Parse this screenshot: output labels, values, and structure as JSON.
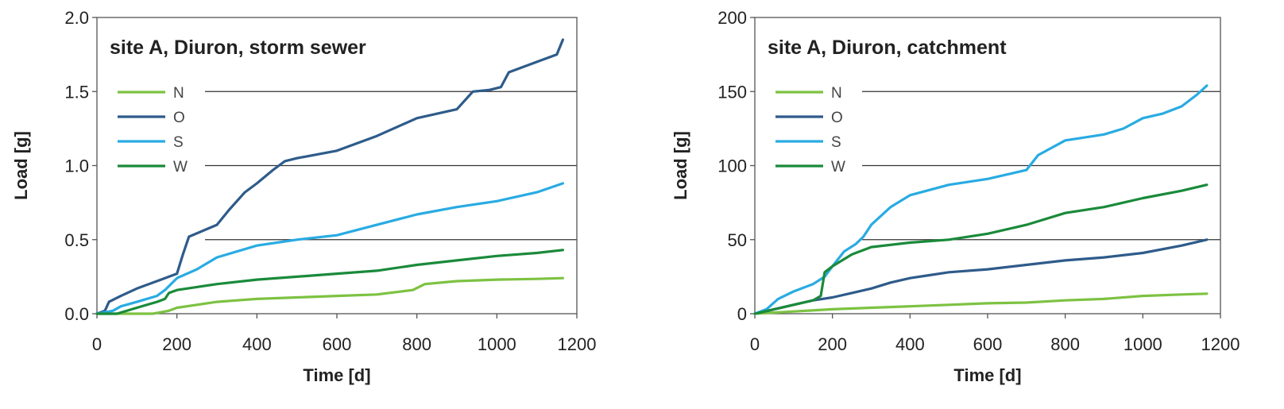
{
  "chart_data": [
    {
      "type": "line",
      "title": "site A, Diuron, storm sewer",
      "xlabel": "Time [d]",
      "ylabel": "Load [g]",
      "xlim": [
        0,
        1200
      ],
      "ylim": [
        0,
        2.0
      ],
      "xticks": [
        "0",
        "200",
        "400",
        "600",
        "800",
        "1000",
        "1200"
      ],
      "yticks": [
        "0.0",
        "0.5",
        "1.0",
        "1.5",
        "2.0"
      ],
      "grid": "horizontal",
      "legend": "top-left",
      "series": [
        {
          "name": "N",
          "color": "#7dc242",
          "x": [
            0,
            140,
            180,
            200,
            250,
            300,
            350,
            400,
            500,
            600,
            700,
            790,
            820,
            900,
            1000,
            1100,
            1165
          ],
          "y": [
            0,
            0.0,
            0.02,
            0.04,
            0.06,
            0.08,
            0.09,
            0.1,
            0.11,
            0.12,
            0.13,
            0.16,
            0.2,
            0.22,
            0.23,
            0.235,
            0.24
          ]
        },
        {
          "name": "O",
          "color": "#2e5b8a",
          "x": [
            0,
            20,
            30,
            60,
            100,
            150,
            200,
            215,
            230,
            300,
            330,
            370,
            400,
            440,
            470,
            500,
            600,
            700,
            800,
            900,
            940,
            980,
            1010,
            1030,
            1100,
            1150,
            1165
          ],
          "y": [
            0,
            0.02,
            0.08,
            0.12,
            0.17,
            0.22,
            0.27,
            0.4,
            0.52,
            0.6,
            0.7,
            0.82,
            0.88,
            0.97,
            1.03,
            1.05,
            1.1,
            1.2,
            1.32,
            1.38,
            1.5,
            1.51,
            1.53,
            1.63,
            1.7,
            1.75,
            1.85
          ]
        },
        {
          "name": "S",
          "color": "#29abe2",
          "x": [
            0,
            40,
            60,
            100,
            150,
            170,
            200,
            250,
            300,
            400,
            500,
            600,
            700,
            800,
            900,
            1000,
            1100,
            1165
          ],
          "y": [
            0,
            0.02,
            0.05,
            0.08,
            0.12,
            0.16,
            0.24,
            0.3,
            0.38,
            0.46,
            0.5,
            0.53,
            0.6,
            0.67,
            0.72,
            0.76,
            0.82,
            0.88
          ]
        },
        {
          "name": "W",
          "color": "#1a8a3a",
          "x": [
            0,
            50,
            100,
            150,
            170,
            180,
            200,
            250,
            300,
            400,
            500,
            600,
            700,
            800,
            900,
            1000,
            1100,
            1165
          ],
          "y": [
            0,
            0.0,
            0.04,
            0.08,
            0.1,
            0.14,
            0.16,
            0.18,
            0.2,
            0.23,
            0.25,
            0.27,
            0.29,
            0.33,
            0.36,
            0.39,
            0.41,
            0.43
          ]
        }
      ]
    },
    {
      "type": "line",
      "title": "site A, Diuron, catchment",
      "xlabel": "Time [d]",
      "ylabel": "Load [g]",
      "xlim": [
        0,
        1200
      ],
      "ylim": [
        0,
        200
      ],
      "xticks": [
        "0",
        "200",
        "400",
        "600",
        "800",
        "1000",
        "1200"
      ],
      "yticks": [
        "0",
        "50",
        "100",
        "150",
        "200"
      ],
      "grid": "horizontal",
      "legend": "top-left",
      "series": [
        {
          "name": "N",
          "color": "#7dc242",
          "x": [
            0,
            100,
            200,
            300,
            400,
            500,
            600,
            700,
            800,
            900,
            1000,
            1100,
            1165
          ],
          "y": [
            0,
            1.5,
            3,
            4,
            5,
            6,
            7,
            7.5,
            9,
            10,
            12,
            13,
            13.5
          ]
        },
        {
          "name": "O",
          "color": "#2e5b8a",
          "x": [
            0,
            50,
            100,
            150,
            200,
            250,
            300,
            350,
            400,
            450,
            500,
            600,
            700,
            800,
            900,
            1000,
            1100,
            1165
          ],
          "y": [
            0,
            3,
            6,
            9,
            11,
            14,
            17,
            21,
            24,
            26,
            28,
            30,
            33,
            36,
            38,
            41,
            46,
            50
          ]
        },
        {
          "name": "S",
          "color": "#29abe2",
          "x": [
            0,
            30,
            60,
            100,
            150,
            180,
            200,
            230,
            260,
            280,
            300,
            350,
            400,
            500,
            600,
            700,
            730,
            800,
            900,
            950,
            1000,
            1050,
            1100,
            1140,
            1165
          ],
          "y": [
            0,
            3,
            10,
            15,
            20,
            25,
            32,
            42,
            47,
            52,
            60,
            72,
            80,
            87,
            91,
            97,
            107,
            117,
            121,
            125,
            132,
            135,
            140,
            148,
            154
          ]
        },
        {
          "name": "W",
          "color": "#1a8a3a",
          "x": [
            0,
            50,
            100,
            150,
            170,
            180,
            200,
            250,
            300,
            400,
            500,
            600,
            700,
            800,
            900,
            1000,
            1100,
            1165
          ],
          "y": [
            0,
            3,
            6,
            9,
            12,
            28,
            32,
            40,
            45,
            48,
            50,
            54,
            60,
            68,
            72,
            78,
            83,
            87
          ]
        }
      ]
    }
  ]
}
